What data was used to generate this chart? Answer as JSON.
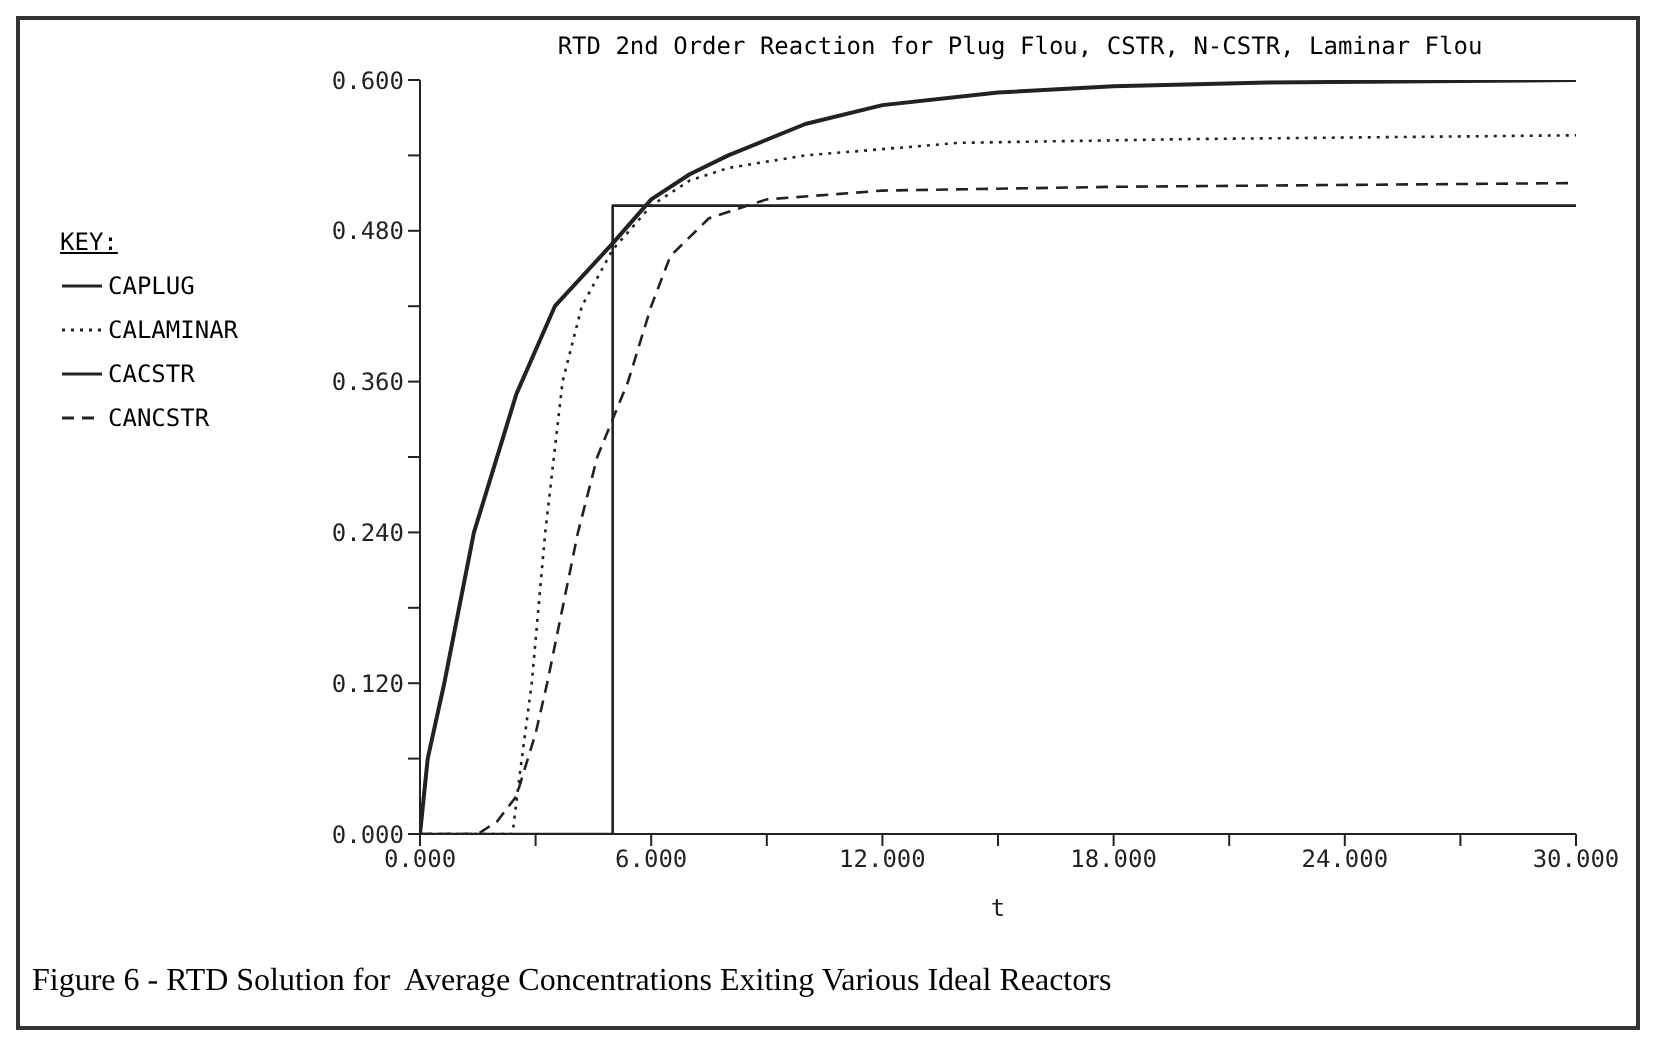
{
  "chart_data": {
    "type": "line",
    "title": "RTD 2nd Order Reaction for Plug Flou, CSTR, N-CSTR, Laminar Flou",
    "xlabel": "t",
    "legend_title": "KEY:",
    "legend": "top left",
    "marker": "none",
    "annotations": [
      "Figure 6 - RTD Solution for  Average Concentrations Exiting Various Ideal Reactors"
    ],
    "xlim": [
      0,
      30
    ],
    "ylim": [
      0,
      0.6
    ],
    "xticks": [
      {
        "value": 0,
        "label": "0.000"
      },
      {
        "value": 3,
        "label": null
      },
      {
        "value": 6,
        "label": "6.000"
      },
      {
        "value": 9,
        "label": null
      },
      {
        "value": 12,
        "label": "12.000"
      },
      {
        "value": 15,
        "label": null
      },
      {
        "value": 18,
        "label": "18.000"
      },
      {
        "value": 21,
        "label": null
      },
      {
        "value": 24,
        "label": "24.000"
      },
      {
        "value": 27,
        "label": null
      },
      {
        "value": 30,
        "label": "30.000"
      }
    ],
    "yticks": [
      {
        "value": 0,
        "label": "0.000"
      },
      {
        "value": 0.06,
        "label": null
      },
      {
        "value": 0.12,
        "label": "0.120"
      },
      {
        "value": 0.18,
        "label": null
      },
      {
        "value": 0.24,
        "label": "0.240"
      },
      {
        "value": 0.3,
        "label": null
      },
      {
        "value": 0.36,
        "label": "0.360"
      },
      {
        "value": 0.42,
        "label": null
      },
      {
        "value": 0.48,
        "label": "0.480"
      },
      {
        "value": 0.54,
        "label": null
      },
      {
        "value": 0.6,
        "label": "0.600"
      }
    ],
    "series": [
      {
        "name": "CAPLUG",
        "type": "step",
        "color": "#222222",
        "line_style": "solid",
        "x": [
          0,
          5,
          30
        ],
        "values": [
          0,
          0.5,
          0.5
        ]
      },
      {
        "name": "CALAMINAR",
        "color": "#222222",
        "line_style": "dotted",
        "x": [
          0,
          2.4,
          2.6,
          2.9,
          3.25,
          3.7,
          4.2,
          5,
          6,
          7,
          8,
          10,
          14,
          20,
          30
        ],
        "values": [
          0,
          0,
          0.05,
          0.12,
          0.24,
          0.36,
          0.42,
          0.465,
          0.5,
          0.52,
          0.53,
          0.54,
          0.55,
          0.553,
          0.556
        ]
      },
      {
        "name": "CACSTR",
        "color": "#222222",
        "line_style": "solid",
        "x": [
          0,
          0.2,
          0.63,
          1.4,
          2.5,
          3.5,
          5,
          6,
          7,
          8,
          10,
          12,
          15,
          18,
          22,
          30
        ],
        "values": [
          0,
          0.06,
          0.12,
          0.24,
          0.35,
          0.42,
          0.47,
          0.505,
          0.525,
          0.54,
          0.565,
          0.58,
          0.59,
          0.595,
          0.598,
          0.6
        ]
      },
      {
        "name": "CANCSTR",
        "color": "#222222",
        "line_style": "dashed",
        "x": [
          0,
          1.5,
          2,
          2.5,
          3,
          3.3,
          4.1,
          4.6,
          5.4,
          6,
          6.5,
          7.5,
          9,
          12,
          18,
          30
        ],
        "values": [
          0,
          0,
          0.01,
          0.03,
          0.08,
          0.12,
          0.24,
          0.3,
          0.36,
          0.42,
          0.46,
          0.49,
          0.505,
          0.512,
          0.515,
          0.518
        ]
      }
    ]
  }
}
